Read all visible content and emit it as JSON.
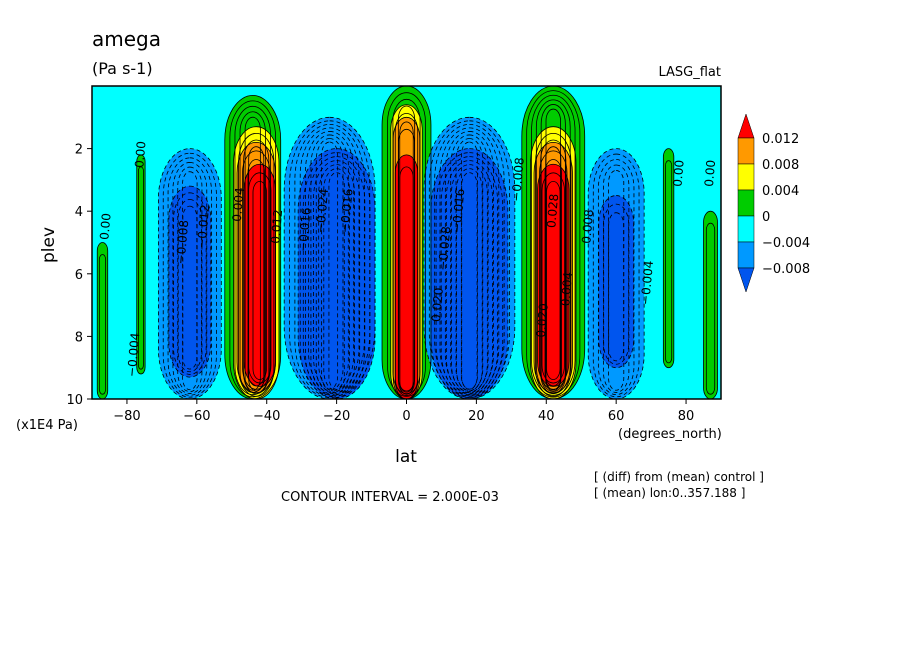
{
  "chart_data": {
    "type": "heatmap",
    "title": "amega",
    "subtitle": "(Pa s-1)",
    "dataset_label": "LASG_flat",
    "xlabel": "lat",
    "x_units": "(degrees_north)",
    "ylabel": "plev",
    "y_units": "(x1E4 Pa)",
    "xlim": [
      -90,
      90
    ],
    "ylim": [
      10,
      0
    ],
    "x_ticks": [
      -80,
      -60,
      -40,
      -20,
      0,
      20,
      40,
      60,
      80
    ],
    "y_ticks": [
      2,
      4,
      6,
      8,
      10
    ],
    "contour_interval_text": "CONTOUR INTERVAL = 2.000E-03",
    "contour_interval": 0.002,
    "notes": [
      "[ (diff) from (mean) control ]",
      "[ (mean) lon:0..357.188 ]"
    ],
    "legend": {
      "placement": "right",
      "levels": [
        {
          "label": "0.012",
          "color": "#ff0000"
        },
        {
          "label": "0.008",
          "color": "#ff9900"
        },
        {
          "label": "0.004",
          "color": "#ffff00"
        },
        {
          "label": "0",
          "color": "#00cc00"
        },
        {
          "label": "−0.004",
          "color": "#00ffff"
        },
        {
          "label": "−0.008",
          "color": "#0099ff"
        }
      ],
      "low_color": "#0055ee",
      "high_color": "#ff0000"
    },
    "bands": [
      {
        "lat": -87,
        "color": "#00cc00",
        "halfwidth": 1.5,
        "top": 5.0,
        "bottom": 10
      },
      {
        "lat": -76,
        "color": "#00cc00",
        "halfwidth": 1.2,
        "top": 2.2,
        "bottom": 9.2
      },
      {
        "lat": -62,
        "color": "#0099ff",
        "halfwidth": 9,
        "top": 2.0,
        "bottom": 10
      },
      {
        "lat": -62,
        "color": "#0055ee",
        "halfwidth": 6,
        "top": 3.2,
        "bottom": 9.3
      },
      {
        "lat": -44,
        "color": "#00cc00",
        "halfwidth": 8,
        "top": 0.3,
        "bottom": 10
      },
      {
        "lat": -43,
        "color": "#ffff00",
        "halfwidth": 6.5,
        "top": 1.3,
        "bottom": 10
      },
      {
        "lat": -43,
        "color": "#ff9900",
        "halfwidth": 5.5,
        "top": 1.8,
        "bottom": 9.8
      },
      {
        "lat": -42,
        "color": "#ff0000",
        "halfwidth": 4.5,
        "top": 2.5,
        "bottom": 9.6
      },
      {
        "lat": -22,
        "color": "#0099ff",
        "halfwidth": 13,
        "top": 1.0,
        "bottom": 10
      },
      {
        "lat": -20,
        "color": "#0055ee",
        "halfwidth": 11,
        "top": 2.0,
        "bottom": 10
      },
      {
        "lat": 0,
        "color": "#00cc00",
        "halfwidth": 7,
        "top": 0,
        "bottom": 10
      },
      {
        "lat": 0,
        "color": "#ffff00",
        "halfwidth": 4.5,
        "top": 0.6,
        "bottom": 10
      },
      {
        "lat": 0,
        "color": "#ff9900",
        "halfwidth": 3.8,
        "top": 1.0,
        "bottom": 10
      },
      {
        "lat": 0,
        "color": "#ff0000",
        "halfwidth": 3.2,
        "top": 2.2,
        "bottom": 10
      },
      {
        "lat": 18,
        "color": "#0099ff",
        "halfwidth": 13,
        "top": 1.0,
        "bottom": 10
      },
      {
        "lat": 18,
        "color": "#0055ee",
        "halfwidth": 11,
        "top": 2.0,
        "bottom": 10
      },
      {
        "lat": 42,
        "color": "#00cc00",
        "halfwidth": 9,
        "top": 0,
        "bottom": 10
      },
      {
        "lat": 42,
        "color": "#ffff00",
        "halfwidth": 6.5,
        "top": 1.3,
        "bottom": 10
      },
      {
        "lat": 42,
        "color": "#ff9900",
        "halfwidth": 5.5,
        "top": 1.8,
        "bottom": 9.8
      },
      {
        "lat": 42,
        "color": "#ff0000",
        "halfwidth": 4.5,
        "top": 2.5,
        "bottom": 9.6
      },
      {
        "lat": 60,
        "color": "#0099ff",
        "halfwidth": 8,
        "top": 2.0,
        "bottom": 10
      },
      {
        "lat": 60,
        "color": "#0055ee",
        "halfwidth": 5,
        "top": 3.5,
        "bottom": 9.0
      },
      {
        "lat": 75,
        "color": "#00cc00",
        "halfwidth": 1.5,
        "top": 2.0,
        "bottom": 9.0
      },
      {
        "lat": 87,
        "color": "#00cc00",
        "halfwidth": 2,
        "top": 4.0,
        "bottom": 10
      }
    ],
    "contour_labels": [
      {
        "text": "0.00",
        "lat": -85,
        "plev": 4.5,
        "angle": -85
      },
      {
        "text": "0.00",
        "lat": -75,
        "plev": 2.2,
        "angle": -85
      },
      {
        "text": "−0.004",
        "lat": -77,
        "plev": 8.6,
        "angle": -85
      },
      {
        "text": "−0.008",
        "lat": -63,
        "plev": 5.0,
        "angle": -85
      },
      {
        "text": "−0.012",
        "lat": -57,
        "plev": 4.5,
        "angle": -85
      },
      {
        "text": "0.004",
        "lat": -47,
        "plev": 3.8,
        "angle": -85
      },
      {
        "text": "0.012",
        "lat": -36,
        "plev": 4.5,
        "angle": -85
      },
      {
        "text": "−0.016",
        "lat": -28,
        "plev": 4.6,
        "angle": -85
      },
      {
        "text": "−0.024",
        "lat": -23,
        "plev": 4.0,
        "angle": -85
      },
      {
        "text": "−0.016",
        "lat": -16,
        "plev": 4.0,
        "angle": -85
      },
      {
        "text": "−0.028",
        "lat": 12,
        "plev": 5.2,
        "angle": -85
      },
      {
        "text": "−0.016",
        "lat": 16,
        "plev": 4.0,
        "angle": -85
      },
      {
        "text": "0.020",
        "lat": 10,
        "plev": 7.0,
        "angle": -85
      },
      {
        "text": "−0.008",
        "lat": 33,
        "plev": 3.0,
        "angle": -85
      },
      {
        "text": "0.028",
        "lat": 43,
        "plev": 4.0,
        "angle": -85
      },
      {
        "text": "0.020",
        "lat": 40,
        "plev": 7.5,
        "angle": -85
      },
      {
        "text": "0.004",
        "lat": 47,
        "plev": 6.5,
        "angle": -85
      },
      {
        "text": "0.008",
        "lat": 53,
        "plev": 4.5,
        "angle": -85
      },
      {
        "text": "−0.004",
        "lat": 70,
        "plev": 6.3,
        "angle": -85
      },
      {
        "text": "0.00",
        "lat": 79,
        "plev": 2.8,
        "angle": -85
      },
      {
        "text": "0.00",
        "lat": 88,
        "plev": 2.8,
        "angle": -85
      }
    ]
  }
}
